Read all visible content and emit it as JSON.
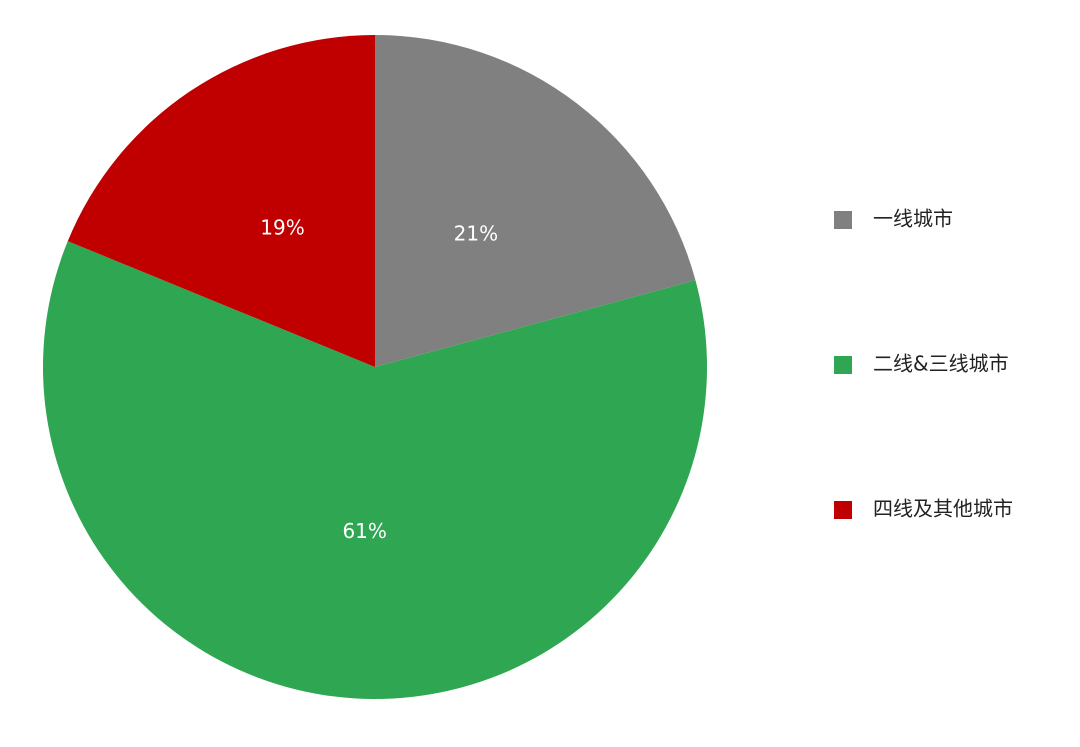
{
  "chart_data": {
    "type": "pie",
    "categories": [
      "一线城市",
      "二线&三线城市",
      "四线及其他城市"
    ],
    "values": [
      21,
      61,
      19
    ],
    "value_labels": [
      "21%",
      "61%",
      "19%"
    ],
    "colors": [
      "#808080",
      "#2fa651",
      "#c00000"
    ],
    "legend": "right"
  }
}
